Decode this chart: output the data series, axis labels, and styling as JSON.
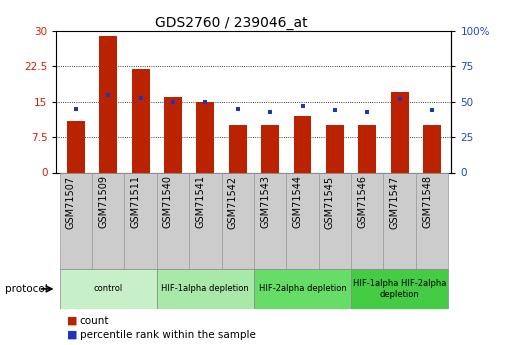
{
  "title": "GDS2760 / 239046_at",
  "samples": [
    "GSM71507",
    "GSM71509",
    "GSM71511",
    "GSM71540",
    "GSM71541",
    "GSM71542",
    "GSM71543",
    "GSM71544",
    "GSM71545",
    "GSM71546",
    "GSM71547",
    "GSM71548"
  ],
  "counts": [
    11,
    29,
    22,
    16,
    15,
    10,
    10,
    12,
    10,
    10,
    17,
    10
  ],
  "percentile_ranks": [
    45,
    55,
    53,
    50,
    50,
    45,
    43,
    47,
    44,
    43,
    52,
    44
  ],
  "ylim_left": [
    0,
    30
  ],
  "ylim_right": [
    0,
    100
  ],
  "yticks_left": [
    0,
    7.5,
    15,
    22.5,
    30
  ],
  "yticks_right": [
    0,
    25,
    50,
    75,
    100
  ],
  "ytick_labels_left": [
    "0",
    "7.5",
    "15",
    "22.5",
    "30"
  ],
  "ytick_labels_right": [
    "0",
    "25",
    "50",
    "75",
    "100%"
  ],
  "bar_color": "#bb2200",
  "dot_color": "#2233bb",
  "protocol_groups": [
    {
      "label": "control",
      "start": 0,
      "end": 2,
      "color": "#c8f0c8"
    },
    {
      "label": "HIF-1alpha depletion",
      "start": 3,
      "end": 5,
      "color": "#a8e8a8"
    },
    {
      "label": "HIF-2alpha depletion",
      "start": 6,
      "end": 8,
      "color": "#66dd66"
    },
    {
      "label": "HIF-1alpha HIF-2alpha\ndepletion",
      "start": 9,
      "end": 11,
      "color": "#44cc44"
    }
  ],
  "legend_count_label": "count",
  "legend_percentile_label": "percentile rank within the sample",
  "protocol_label": "protocol",
  "bar_width": 0.55,
  "xtick_bg_color": "#cccccc",
  "xtick_border_color": "#999999",
  "tick_label_color_left": "#cc2200",
  "tick_label_color_right": "#2244cc",
  "grid_style": "dotted",
  "title_fontsize": 10,
  "tick_fontsize": 7.5,
  "label_fontsize": 7,
  "legend_fontsize": 8
}
